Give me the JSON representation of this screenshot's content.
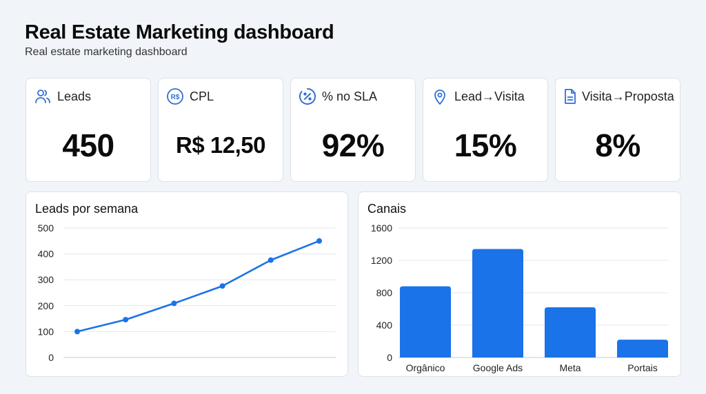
{
  "header": {
    "title": "Real Estate Marketing dashboard",
    "subtitle": "Real estate marketing dashboard"
  },
  "kpis": [
    {
      "icon": "users-icon",
      "label": "Leads",
      "value": "450"
    },
    {
      "icon": "currency-brl-icon",
      "label": "CPL",
      "value": "R$ 12,50",
      "icon_text": "R$"
    },
    {
      "icon": "percent-circle-icon",
      "label": "% no SLA",
      "value": "92%"
    },
    {
      "icon": "map-pin-icon",
      "label": "Lead→Visita",
      "value": "15%"
    },
    {
      "icon": "document-icon",
      "label": "Visita→Proposta",
      "value": "8%"
    }
  ],
  "colors": {
    "accent": "#1a73e8",
    "icon": "#2f6fd6",
    "background": "#f1f4f8",
    "card": "#ffffff",
    "grid": "#e3e6ea"
  },
  "chart_data": [
    {
      "type": "line",
      "title": "Leads por semana",
      "x": [
        1,
        2,
        3,
        4,
        5,
        6
      ],
      "categories": [
        "",
        "",
        "",
        "",
        "",
        ""
      ],
      "series": [
        {
          "name": "Leads",
          "values": [
            100,
            146,
            209,
            276,
            376,
            450
          ]
        }
      ],
      "yticks": [
        "0",
        "100",
        "200",
        "300",
        "400",
        "500"
      ],
      "ylim": [
        0,
        500
      ],
      "xlabel": "",
      "ylabel": "",
      "grid": true,
      "legend": "none"
    },
    {
      "type": "bar",
      "title": "Canais",
      "categories": [
        "Orgânico",
        "Google Ads",
        "Meta",
        "Portais"
      ],
      "values": [
        880,
        1340,
        620,
        220
      ],
      "yticks": [
        "0",
        "400",
        "800",
        "1200",
        "1600"
      ],
      "ylim": [
        0,
        1600
      ],
      "xlabel": "",
      "ylabel": "",
      "grid": true,
      "legend": "none"
    }
  ]
}
